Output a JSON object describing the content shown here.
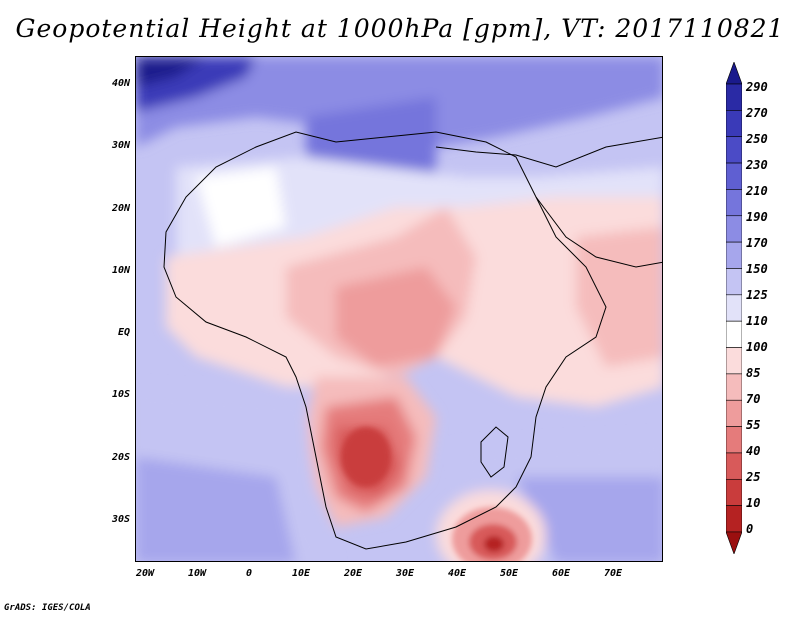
{
  "title": "Geopotential Height at 1000hPa [gpm], VT: 2017110821",
  "lat_labels": [
    "40N",
    "30N",
    "20N",
    "10N",
    "EQ",
    "10S",
    "20S",
    "30S"
  ],
  "lon_labels": [
    "20W",
    "10W",
    "0",
    "10E",
    "20E",
    "30E",
    "40E",
    "50E",
    "60E",
    "70E"
  ],
  "colorbar": {
    "levels": [
      "290",
      "270",
      "250",
      "230",
      "210",
      "190",
      "170",
      "150",
      "125",
      "110",
      "100",
      "85",
      "70",
      "55",
      "40",
      "25",
      "10",
      "0"
    ],
    "colors": [
      "#1a1a8c",
      "#2a2aa5",
      "#3a3ab8",
      "#4b4bc6",
      "#5f5fd2",
      "#7575dc",
      "#8c8ce4",
      "#a6a6ec",
      "#c4c4f3",
      "#e2e2f9",
      "#ffffff",
      "#fbdcdc",
      "#f5bcbc",
      "#ee9c9c",
      "#e57b7b",
      "#d85a5a",
      "#c93c3c",
      "#b52222",
      "#9a0f0f"
    ]
  },
  "credit": "GrADS: IGES/COLA"
}
